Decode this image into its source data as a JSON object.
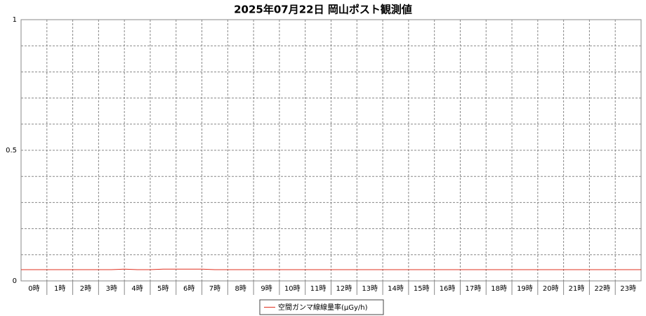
{
  "chart_data": {
    "type": "line",
    "title": "2025年07月22日 岡山ポスト観測値",
    "categories": [
      "0時",
      "1時",
      "2時",
      "3時",
      "4時",
      "5時",
      "6時",
      "7時",
      "8時",
      "9時",
      "10時",
      "11時",
      "12時",
      "13時",
      "14時",
      "15時",
      "16時",
      "17時",
      "18時",
      "19時",
      "20時",
      "21時",
      "22時",
      "23時"
    ],
    "x": [
      0,
      0.5,
      1,
      1.5,
      2,
      2.5,
      3,
      3.5,
      4,
      4.5,
      5,
      5.5,
      6,
      6.5,
      7,
      7.5,
      8,
      8.5,
      9,
      9.5,
      10,
      10.5,
      11,
      11.5,
      12,
      12.5,
      13,
      13.5,
      14,
      14.5,
      15,
      15.5,
      16,
      16.5,
      17,
      17.5,
      18,
      18.5,
      19,
      19.5,
      20,
      20.5,
      21,
      21.5,
      22,
      22.5,
      23,
      23.5,
      24
    ],
    "xlim": [
      0,
      24
    ],
    "series": [
      {
        "name": "空間ガンマ線線量率(μGy/h)",
        "color": "#e03020",
        "values": [
          0.043,
          0.043,
          0.043,
          0.043,
          0.043,
          0.043,
          0.043,
          0.043,
          0.045,
          0.043,
          0.043,
          0.045,
          0.045,
          0.045,
          0.045,
          0.043,
          0.043,
          0.043,
          0.043,
          0.043,
          0.043,
          0.043,
          0.043,
          0.043,
          0.043,
          0.043,
          0.043,
          0.043,
          0.043,
          0.043,
          0.043,
          0.043,
          0.043,
          0.043,
          0.043,
          0.043,
          0.043,
          0.043,
          0.043,
          0.043,
          0.043,
          0.043,
          0.043,
          0.043,
          0.043,
          0.043,
          0.043,
          0.043,
          0.043
        ]
      }
    ],
    "ylim": [
      0,
      1
    ],
    "yticks": [
      0,
      0.5,
      1
    ],
    "yminorticks": [
      0.1,
      0.2,
      0.3,
      0.4,
      0.6,
      0.7,
      0.8,
      0.9
    ],
    "grid": true,
    "legend": "bottom"
  }
}
